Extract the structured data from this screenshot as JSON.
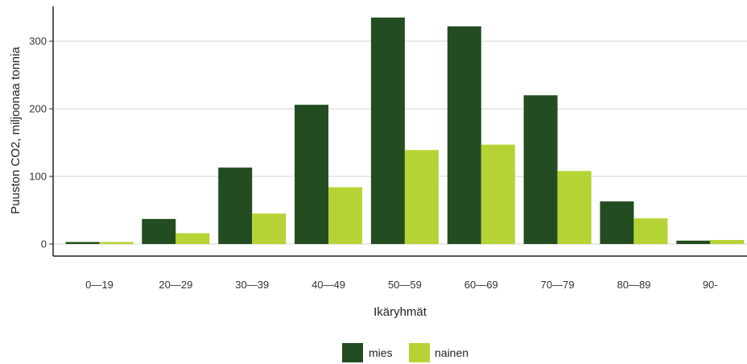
{
  "chart_data": {
    "type": "bar",
    "xlabel": "Ikäryhmät",
    "ylabel": "Puuston CO2, miljoonaa tonnia",
    "ylim": [
      0,
      340
    ],
    "yticks": [
      0,
      100,
      200,
      300
    ],
    "categories": [
      "0—19",
      "20—29",
      "30—39",
      "40—49",
      "50—59",
      "60—69",
      "70—79",
      "80—89",
      "90-"
    ],
    "series": [
      {
        "name": "mies",
        "color": "#234d20",
        "values": [
          3,
          37,
          113,
          206,
          335,
          322,
          220,
          63,
          5
        ]
      },
      {
        "name": "nainen",
        "color": "#b5d334",
        "values": [
          3,
          16,
          45,
          84,
          139,
          147,
          108,
          38,
          6
        ]
      }
    ],
    "grid": "horizontal",
    "legend_position": "bottom"
  }
}
